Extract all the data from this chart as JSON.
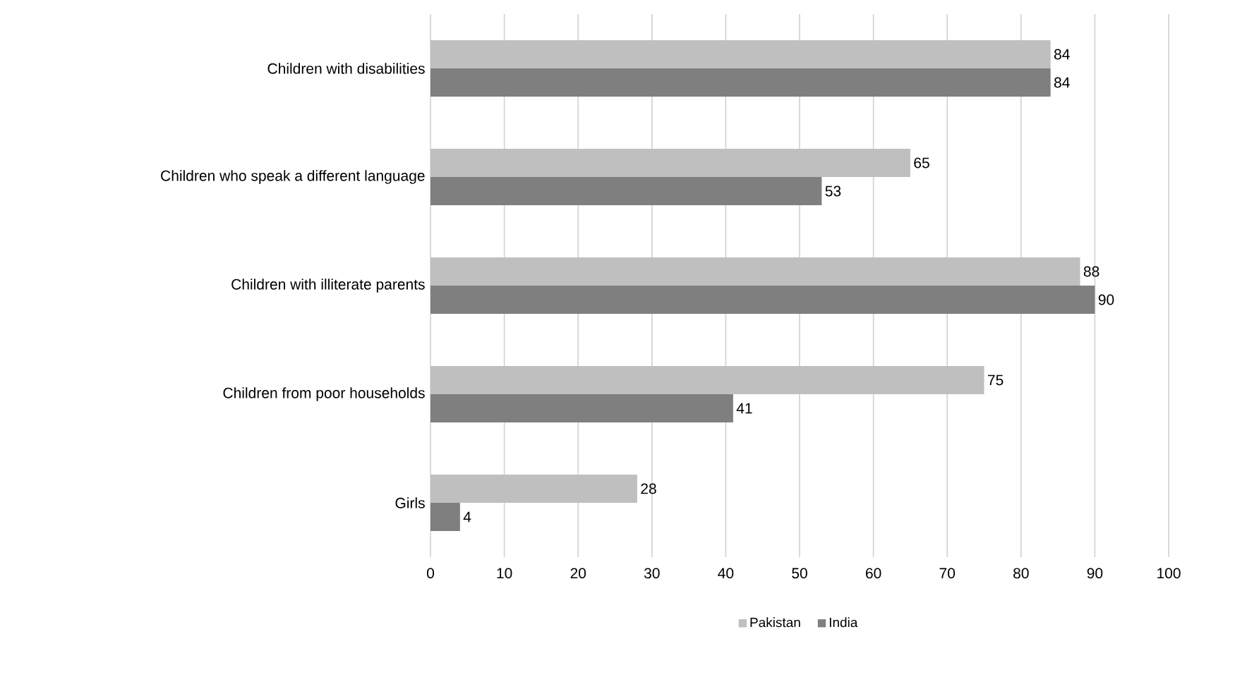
{
  "chart_data": {
    "type": "bar",
    "orientation": "horizontal",
    "categories": [
      "Children with disabilities",
      "Children who speak a different language",
      "Children with illiterate parents",
      "Children from poor households",
      "Girls"
    ],
    "series": [
      {
        "name": "Pakistan",
        "color": "#bfbfbf",
        "values": [
          84,
          65,
          88,
          75,
          28
        ]
      },
      {
        "name": "India",
        "color": "#7f7f7f",
        "values": [
          84,
          53,
          90,
          41,
          4
        ]
      }
    ],
    "xlim": [
      0,
      100
    ],
    "xticks": [
      0,
      10,
      20,
      30,
      40,
      50,
      60,
      70,
      80,
      90,
      100
    ],
    "grid": "x",
    "legend": "bottom",
    "data_labels": true
  }
}
